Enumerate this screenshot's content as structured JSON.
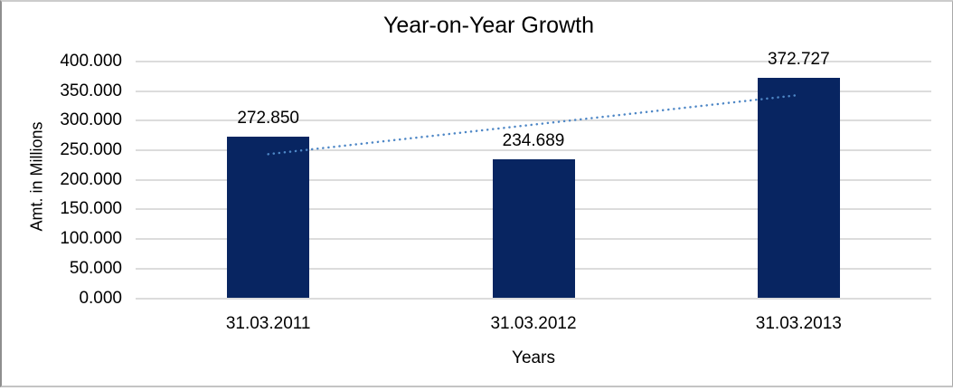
{
  "chart_data": {
    "type": "bar",
    "title": "Year-on-Year Growth",
    "xlabel": "Years",
    "ylabel": "Amt. in Millions",
    "categories": [
      "31.03.2011",
      "31.03.2012",
      "31.03.2013"
    ],
    "values": [
      272.85,
      234.689,
      372.727
    ],
    "data_labels": [
      "272.850",
      "234.689",
      "372.727"
    ],
    "y_ticks": [
      {
        "value": 400,
        "label": "400.000"
      },
      {
        "value": 350,
        "label": "350.000"
      },
      {
        "value": 300,
        "label": "300.000"
      },
      {
        "value": 250,
        "label": "250.000"
      },
      {
        "value": 200,
        "label": "200.000"
      },
      {
        "value": 150,
        "label": "150.000"
      },
      {
        "value": 100,
        "label": "100.000"
      },
      {
        "value": 50,
        "label": "50.000"
      },
      {
        "value": 0,
        "label": "0.000"
      }
    ],
    "ylim": [
      0,
      400
    ],
    "grid": true,
    "legend": "none",
    "trendline": {
      "type": "linear",
      "style": "dotted"
    },
    "colors": {
      "bar": "#082561",
      "trendline": "#4E87C6",
      "gridline": "#DCDCDC",
      "text": "#000000",
      "background": "#FFFFFF"
    }
  }
}
